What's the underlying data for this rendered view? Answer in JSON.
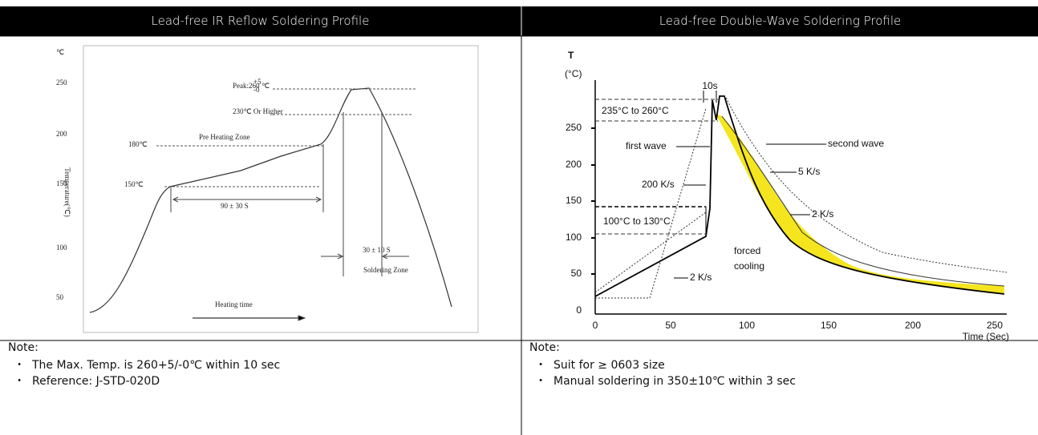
{
  "table": {
    "headers": [
      "Lead-free IR Reflow Soldering Profile",
      "Lead-free Double-Wave Soldering Profile"
    ],
    "notes": [
      {
        "title": "Note:",
        "items": [
          "The Max. Temp. is 260+5/-0℃ within 10 sec",
          "Reference: J-STD-020D"
        ]
      },
      {
        "title": "Note:",
        "items": [
          "Suit for ≥ 0603 size",
          "Manual soldering in 350±10℃ within 3 sec"
        ]
      }
    ]
  },
  "figures": [
    {
      "unit": "℃",
      "y_axis_label": "Temperature(℃)",
      "yticks": [
        "250",
        "200",
        "150",
        "100",
        "50"
      ],
      "annotations": [
        "Peak:260",
        "+5",
        "-0",
        "℃",
        "230℃ Or Higher",
        "Pre Heating Zone",
        "180℃",
        "150℃",
        "90 ± 30 S",
        "30 ± 10 S",
        "Soldering Zone",
        "Heating time"
      ]
    },
    {
      "axis_title": "T",
      "unit": "(°C)",
      "yticks": [
        "250",
        "200",
        "150",
        "100",
        "50",
        "0"
      ],
      "xticks": [
        "0",
        "50",
        "100",
        "150",
        "200",
        "250"
      ],
      "x_axis_label": "Time (Sec)",
      "annotations": [
        "10s",
        "235°C to 260°C",
        "second wave",
        "first wave",
        "5 K/s",
        "200 K/s",
        "2 K/s",
        "100°C to 130°C",
        "forced",
        "cooling",
        "2 K/s"
      ]
    }
  ]
}
